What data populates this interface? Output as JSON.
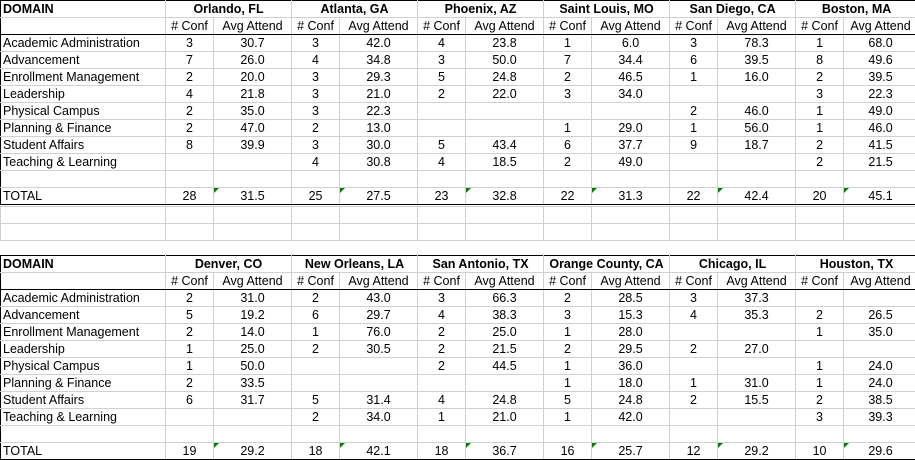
{
  "labels": {
    "domain": "DOMAIN",
    "conf": "# Conf",
    "avg": "Avg Attend",
    "total": "TOTAL"
  },
  "domains": [
    "Academic Administration",
    "Advancement",
    "Enrollment Management",
    "Leadership",
    "Physical Campus",
    "Planning & Finance",
    "Student Affairs",
    "Teaching & Learning"
  ],
  "blocks": [
    {
      "cities": [
        {
          "name": "Orlando, FL",
          "rows": [
            [
              "3",
              "30.7"
            ],
            [
              "7",
              "26.0"
            ],
            [
              "2",
              "20.0"
            ],
            [
              "4",
              "21.8"
            ],
            [
              "2",
              "35.0"
            ],
            [
              "2",
              "47.0"
            ],
            [
              "8",
              "39.9"
            ],
            [
              "",
              ""
            ]
          ],
          "total": [
            "28",
            "31.5"
          ]
        },
        {
          "name": "Atlanta, GA",
          "rows": [
            [
              "3",
              "42.0"
            ],
            [
              "4",
              "34.8"
            ],
            [
              "3",
              "29.3"
            ],
            [
              "3",
              "21.0"
            ],
            [
              "3",
              "22.3"
            ],
            [
              "2",
              "13.0"
            ],
            [
              "3",
              "30.0"
            ],
            [
              "4",
              "30.8"
            ]
          ],
          "total": [
            "25",
            "27.5"
          ]
        },
        {
          "name": "Phoenix, AZ",
          "rows": [
            [
              "4",
              "23.8"
            ],
            [
              "3",
              "50.0"
            ],
            [
              "5",
              "24.8"
            ],
            [
              "2",
              "22.0"
            ],
            [
              "",
              ""
            ],
            [
              "",
              ""
            ],
            [
              "5",
              "43.4"
            ],
            [
              "4",
              "18.5"
            ]
          ],
          "total": [
            "23",
            "32.8"
          ]
        },
        {
          "name": "Saint Louis, MO",
          "rows": [
            [
              "1",
              "6.0"
            ],
            [
              "7",
              "34.4"
            ],
            [
              "2",
              "46.5"
            ],
            [
              "3",
              "34.0"
            ],
            [
              "",
              ""
            ],
            [
              "1",
              "29.0"
            ],
            [
              "6",
              "37.7"
            ],
            [
              "2",
              "49.0"
            ]
          ],
          "total": [
            "22",
            "31.3"
          ]
        },
        {
          "name": "San Diego, CA",
          "rows": [
            [
              "3",
              "78.3"
            ],
            [
              "6",
              "39.5"
            ],
            [
              "1",
              "16.0"
            ],
            [
              "",
              ""
            ],
            [
              "2",
              "46.0"
            ],
            [
              "1",
              "56.0"
            ],
            [
              "9",
              "18.7"
            ],
            [
              "",
              ""
            ]
          ],
          "total": [
            "22",
            "42.4"
          ]
        },
        {
          "name": "Boston, MA",
          "rows": [
            [
              "1",
              "68.0"
            ],
            [
              "8",
              "49.6"
            ],
            [
              "2",
              "39.5"
            ],
            [
              "3",
              "22.3"
            ],
            [
              "1",
              "49.0"
            ],
            [
              "1",
              "46.0"
            ],
            [
              "2",
              "41.5"
            ],
            [
              "2",
              "21.5"
            ]
          ],
          "total": [
            "20",
            "45.1"
          ]
        }
      ]
    },
    {
      "cities": [
        {
          "name": "Denver, CO",
          "rows": [
            [
              "2",
              "31.0"
            ],
            [
              "5",
              "19.2"
            ],
            [
              "2",
              "14.0"
            ],
            [
              "1",
              "25.0"
            ],
            [
              "1",
              "50.0"
            ],
            [
              "2",
              "33.5"
            ],
            [
              "6",
              "31.7"
            ],
            [
              "",
              ""
            ]
          ],
          "total": [
            "19",
            "29.2"
          ]
        },
        {
          "name": "New Orleans, LA",
          "rows": [
            [
              "2",
              "43.0"
            ],
            [
              "6",
              "29.7"
            ],
            [
              "1",
              "76.0"
            ],
            [
              "2",
              "30.5"
            ],
            [
              "",
              ""
            ],
            [
              "",
              ""
            ],
            [
              "5",
              "31.4"
            ],
            [
              "2",
              "34.0"
            ]
          ],
          "total": [
            "18",
            "42.1"
          ]
        },
        {
          "name": "San Antonio, TX",
          "rows": [
            [
              "3",
              "66.3"
            ],
            [
              "4",
              "38.3"
            ],
            [
              "2",
              "25.0"
            ],
            [
              "2",
              "21.5"
            ],
            [
              "2",
              "44.5"
            ],
            [
              "",
              ""
            ],
            [
              "4",
              "24.8"
            ],
            [
              "1",
              "21.0"
            ]
          ],
          "total": [
            "18",
            "36.7"
          ]
        },
        {
          "name": "Orange County, CA",
          "rows": [
            [
              "2",
              "28.5"
            ],
            [
              "3",
              "15.3"
            ],
            [
              "1",
              "28.0"
            ],
            [
              "2",
              "29.5"
            ],
            [
              "1",
              "36.0"
            ],
            [
              "1",
              "18.0"
            ],
            [
              "5",
              "24.8"
            ],
            [
              "1",
              "42.0"
            ]
          ],
          "total": [
            "16",
            "25.7"
          ]
        },
        {
          "name": "Chicago, IL",
          "rows": [
            [
              "3",
              "37.3"
            ],
            [
              "4",
              "35.3"
            ],
            [
              "",
              ""
            ],
            [
              "2",
              "27.0"
            ],
            [
              "",
              ""
            ],
            [
              "1",
              "31.0"
            ],
            [
              "2",
              "15.5"
            ],
            [
              "",
              ""
            ]
          ],
          "total": [
            "12",
            "29.2"
          ]
        },
        {
          "name": "Houston, TX",
          "rows": [
            [
              "",
              ""
            ],
            [
              "2",
              "26.5"
            ],
            [
              "1",
              "35.0"
            ],
            [
              "",
              ""
            ],
            [
              "1",
              "24.0"
            ],
            [
              "1",
              "24.0"
            ],
            [
              "2",
              "38.5"
            ],
            [
              "3",
              "39.3"
            ]
          ],
          "total": [
            "10",
            "29.6"
          ]
        }
      ]
    }
  ]
}
